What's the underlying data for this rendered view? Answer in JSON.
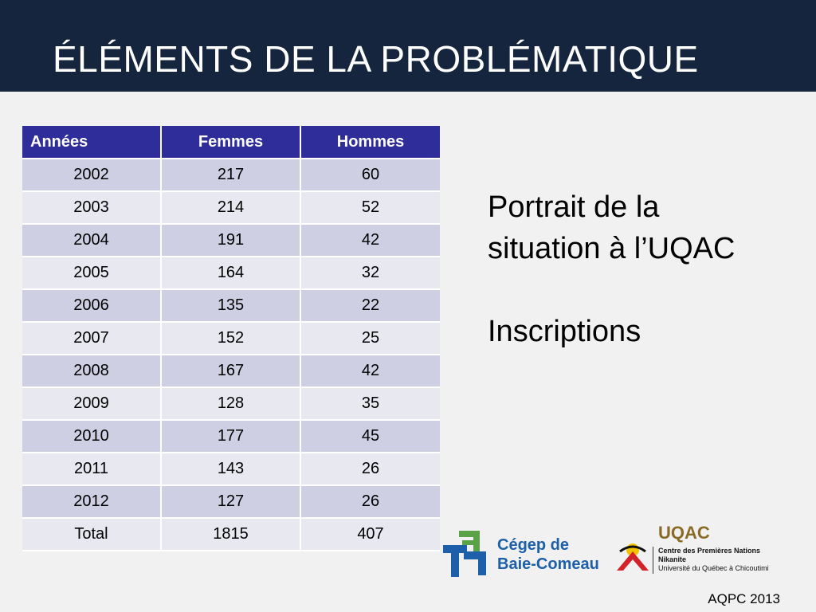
{
  "title": "ÉLÉMENTS DE LA PROBLÉMATIQUE",
  "table": {
    "headers": [
      "Années",
      "Femmes",
      "Hommes"
    ],
    "rows": [
      [
        "2002",
        "217",
        "60"
      ],
      [
        "2003",
        "214",
        "52"
      ],
      [
        "2004",
        "191",
        "42"
      ],
      [
        "2005",
        "164",
        "32"
      ],
      [
        "2006",
        "135",
        "22"
      ],
      [
        "2007",
        "152",
        "25"
      ],
      [
        "2008",
        "167",
        "42"
      ],
      [
        "2009",
        "128",
        "35"
      ],
      [
        "2010",
        "177",
        "45"
      ],
      [
        "2011",
        "143",
        "26"
      ],
      [
        "2012",
        "127",
        "26"
      ],
      [
        "Total",
        "1815",
        "407"
      ]
    ]
  },
  "side": {
    "line1": "Portrait de la",
    "line2": "situation à l’UQAC",
    "line3": "Inscriptions"
  },
  "logos": {
    "cegep_line1": "Cégep de",
    "cegep_line2": "Baie-Comeau",
    "uqac_brand": "UQAC",
    "uqac_line1": "Centre des Premières Nations",
    "uqac_line2": "Nikanite",
    "uqac_line3": "Université du Québec à Chicoutimi"
  },
  "footer": "AQPC 2013",
  "colors": {
    "title_bar": "#15253d",
    "table_header": "#2f2d99",
    "row_dark": "#cfcfe3",
    "row_light": "#e8e8f0",
    "cegep_blue": "#1d5fa8",
    "cegep_green": "#5aa147",
    "uqac_gold": "#8a6b26",
    "uqac_red": "#d2232a"
  }
}
